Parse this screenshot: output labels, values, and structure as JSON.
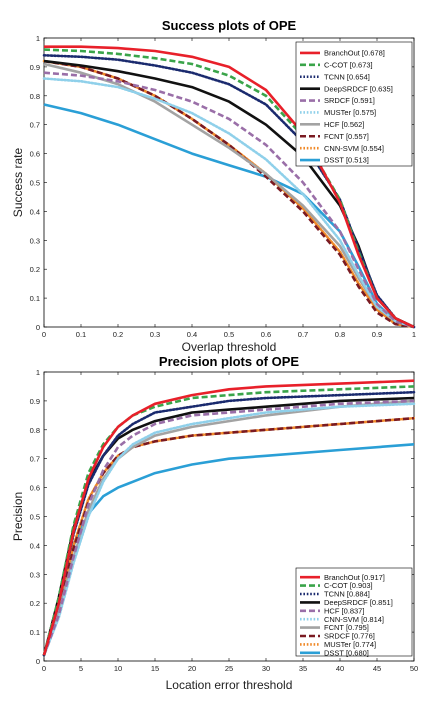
{
  "chart_data": [
    {
      "type": "line",
      "title": "Success plots of OPE",
      "xlabel": "Overlap threshold",
      "ylabel": "Success rate",
      "xlim": [
        0,
        1
      ],
      "ylim": [
        0,
        1
      ],
      "xticks": [
        "0",
        "0.1",
        "0.2",
        "0.3",
        "0.4",
        "0.5",
        "0.6",
        "0.7",
        "0.8",
        "0.9",
        "1"
      ],
      "yticks": [
        "0",
        "0.1",
        "0.2",
        "0.3",
        "0.4",
        "0.5",
        "0.6",
        "0.7",
        "0.8",
        "0.9",
        "1"
      ],
      "legend_position": "top-right",
      "x": [
        0,
        0.1,
        0.2,
        0.3,
        0.4,
        0.5,
        0.6,
        0.7,
        0.8,
        0.85,
        0.9,
        0.95,
        1
      ],
      "series": [
        {
          "name": "BranchOut [0.678]",
          "color": "#e8202a",
          "dash": "solid",
          "values": [
            0.97,
            0.97,
            0.965,
            0.955,
            0.935,
            0.9,
            0.82,
            0.67,
            0.43,
            0.25,
            0.1,
            0.03,
            0.0
          ]
        },
        {
          "name": "C-COT [0.673]",
          "color": "#3aa44a",
          "dash": "dash",
          "values": [
            0.96,
            0.955,
            0.945,
            0.93,
            0.91,
            0.87,
            0.8,
            0.66,
            0.44,
            0.26,
            0.1,
            0.03,
            0.0
          ]
        },
        {
          "name": "TCNN [0.654]",
          "color": "#1a2a6e",
          "dash": "dot",
          "values": [
            0.94,
            0.935,
            0.925,
            0.905,
            0.88,
            0.84,
            0.77,
            0.64,
            0.44,
            0.27,
            0.11,
            0.03,
            0.0
          ]
        },
        {
          "name": "DeepSRDCF [0.635]",
          "color": "#111111",
          "dash": "solid",
          "values": [
            0.92,
            0.905,
            0.885,
            0.86,
            0.83,
            0.78,
            0.7,
            0.59,
            0.42,
            0.28,
            0.1,
            0.03,
            0.0
          ]
        },
        {
          "name": "SRDCF [0.591]",
          "color": "#9a6fa8",
          "dash": "dash",
          "values": [
            0.88,
            0.87,
            0.85,
            0.82,
            0.78,
            0.72,
            0.63,
            0.5,
            0.33,
            0.2,
            0.08,
            0.02,
            0.0
          ]
        },
        {
          "name": "MUSTer [0.575]",
          "color": "#8fd0ea",
          "dash": "dot",
          "values": [
            0.86,
            0.85,
            0.83,
            0.79,
            0.74,
            0.67,
            0.58,
            0.46,
            0.3,
            0.18,
            0.07,
            0.02,
            0.0
          ]
        },
        {
          "name": "HCF [0.562]",
          "color": "#a3a3a3",
          "dash": "solid",
          "values": [
            0.91,
            0.88,
            0.84,
            0.78,
            0.7,
            0.62,
            0.53,
            0.42,
            0.28,
            0.17,
            0.07,
            0.02,
            0.0
          ]
        },
        {
          "name": "FCNT [0.557]",
          "color": "#7a1a22",
          "dash": "dash",
          "values": [
            0.92,
            0.9,
            0.86,
            0.8,
            0.72,
            0.63,
            0.52,
            0.4,
            0.25,
            0.14,
            0.05,
            0.01,
            0.0
          ]
        },
        {
          "name": "CNN-SVM [0.554]",
          "color": "#f08a2a",
          "dash": "dot",
          "values": [
            0.92,
            0.9,
            0.86,
            0.8,
            0.72,
            0.63,
            0.53,
            0.41,
            0.26,
            0.15,
            0.06,
            0.01,
            0.0
          ]
        },
        {
          "name": "DSST [0.513]",
          "color": "#2a9fd6",
          "dash": "solid",
          "values": [
            0.77,
            0.74,
            0.7,
            0.65,
            0.6,
            0.56,
            0.52,
            0.46,
            0.33,
            0.21,
            0.08,
            0.02,
            0.0
          ]
        }
      ]
    },
    {
      "type": "line",
      "title": "Precision plots of OPE",
      "xlabel": "Location error threshold",
      "ylabel": "Precision",
      "xlim": [
        0,
        50
      ],
      "ylim": [
        0,
        1
      ],
      "xticks": [
        "0",
        "5",
        "10",
        "15",
        "20",
        "25",
        "30",
        "35",
        "40",
        "45",
        "50"
      ],
      "yticks": [
        "0",
        "0.1",
        "0.2",
        "0.3",
        "0.4",
        "0.5",
        "0.6",
        "0.7",
        "0.8",
        "0.9",
        "1"
      ],
      "legend_position": "bottom-right",
      "x": [
        0,
        2,
        4,
        6,
        8,
        10,
        12,
        15,
        20,
        25,
        30,
        40,
        50
      ],
      "series": [
        {
          "name": "BranchOut [0.917]",
          "color": "#e8202a",
          "dash": "solid",
          "values": [
            0.02,
            0.2,
            0.45,
            0.63,
            0.74,
            0.81,
            0.85,
            0.89,
            0.92,
            0.94,
            0.95,
            0.96,
            0.97
          ]
        },
        {
          "name": "C-COT [0.903]",
          "color": "#3aa44a",
          "dash": "dash",
          "values": [
            0.02,
            0.22,
            0.47,
            0.65,
            0.75,
            0.81,
            0.85,
            0.88,
            0.91,
            0.92,
            0.93,
            0.94,
            0.95
          ]
        },
        {
          "name": "TCNN [0.884]",
          "color": "#1a2a6e",
          "dash": "dot",
          "values": [
            0.02,
            0.2,
            0.44,
            0.61,
            0.71,
            0.78,
            0.82,
            0.86,
            0.88,
            0.9,
            0.91,
            0.92,
            0.93
          ]
        },
        {
          "name": "DeepSRDCF [0.851]",
          "color": "#111111",
          "dash": "solid",
          "values": [
            0.02,
            0.22,
            0.46,
            0.62,
            0.71,
            0.77,
            0.8,
            0.83,
            0.86,
            0.87,
            0.88,
            0.9,
            0.91
          ]
        },
        {
          "name": "HCF [0.837]",
          "color": "#9a6fa8",
          "dash": "dash",
          "values": [
            0.02,
            0.16,
            0.36,
            0.54,
            0.66,
            0.74,
            0.78,
            0.82,
            0.85,
            0.86,
            0.87,
            0.89,
            0.9
          ]
        },
        {
          "name": "CNN-SVM [0.814]",
          "color": "#8fd0ea",
          "dash": "dot",
          "values": [
            0.02,
            0.15,
            0.34,
            0.5,
            0.62,
            0.7,
            0.75,
            0.79,
            0.82,
            0.84,
            0.86,
            0.88,
            0.89
          ]
        },
        {
          "name": "FCNT [0.795]",
          "color": "#a3a3a3",
          "dash": "solid",
          "values": [
            0.02,
            0.17,
            0.36,
            0.52,
            0.63,
            0.7,
            0.74,
            0.78,
            0.81,
            0.83,
            0.85,
            0.88,
            0.9
          ]
        },
        {
          "name": "SRDCF [0.776]",
          "color": "#7a1a22",
          "dash": "dash",
          "values": [
            0.02,
            0.18,
            0.39,
            0.55,
            0.65,
            0.71,
            0.74,
            0.76,
            0.78,
            0.79,
            0.8,
            0.82,
            0.84
          ]
        },
        {
          "name": "MUSTer [0.774]",
          "color": "#f08a2a",
          "dash": "dot",
          "values": [
            0.02,
            0.19,
            0.4,
            0.56,
            0.65,
            0.71,
            0.74,
            0.76,
            0.78,
            0.79,
            0.8,
            0.82,
            0.84
          ]
        },
        {
          "name": "DSST [0.680]",
          "color": "#2a9fd6",
          "dash": "solid",
          "values": [
            0.02,
            0.2,
            0.4,
            0.51,
            0.57,
            0.6,
            0.62,
            0.65,
            0.68,
            0.7,
            0.71,
            0.73,
            0.75
          ]
        }
      ]
    }
  ]
}
